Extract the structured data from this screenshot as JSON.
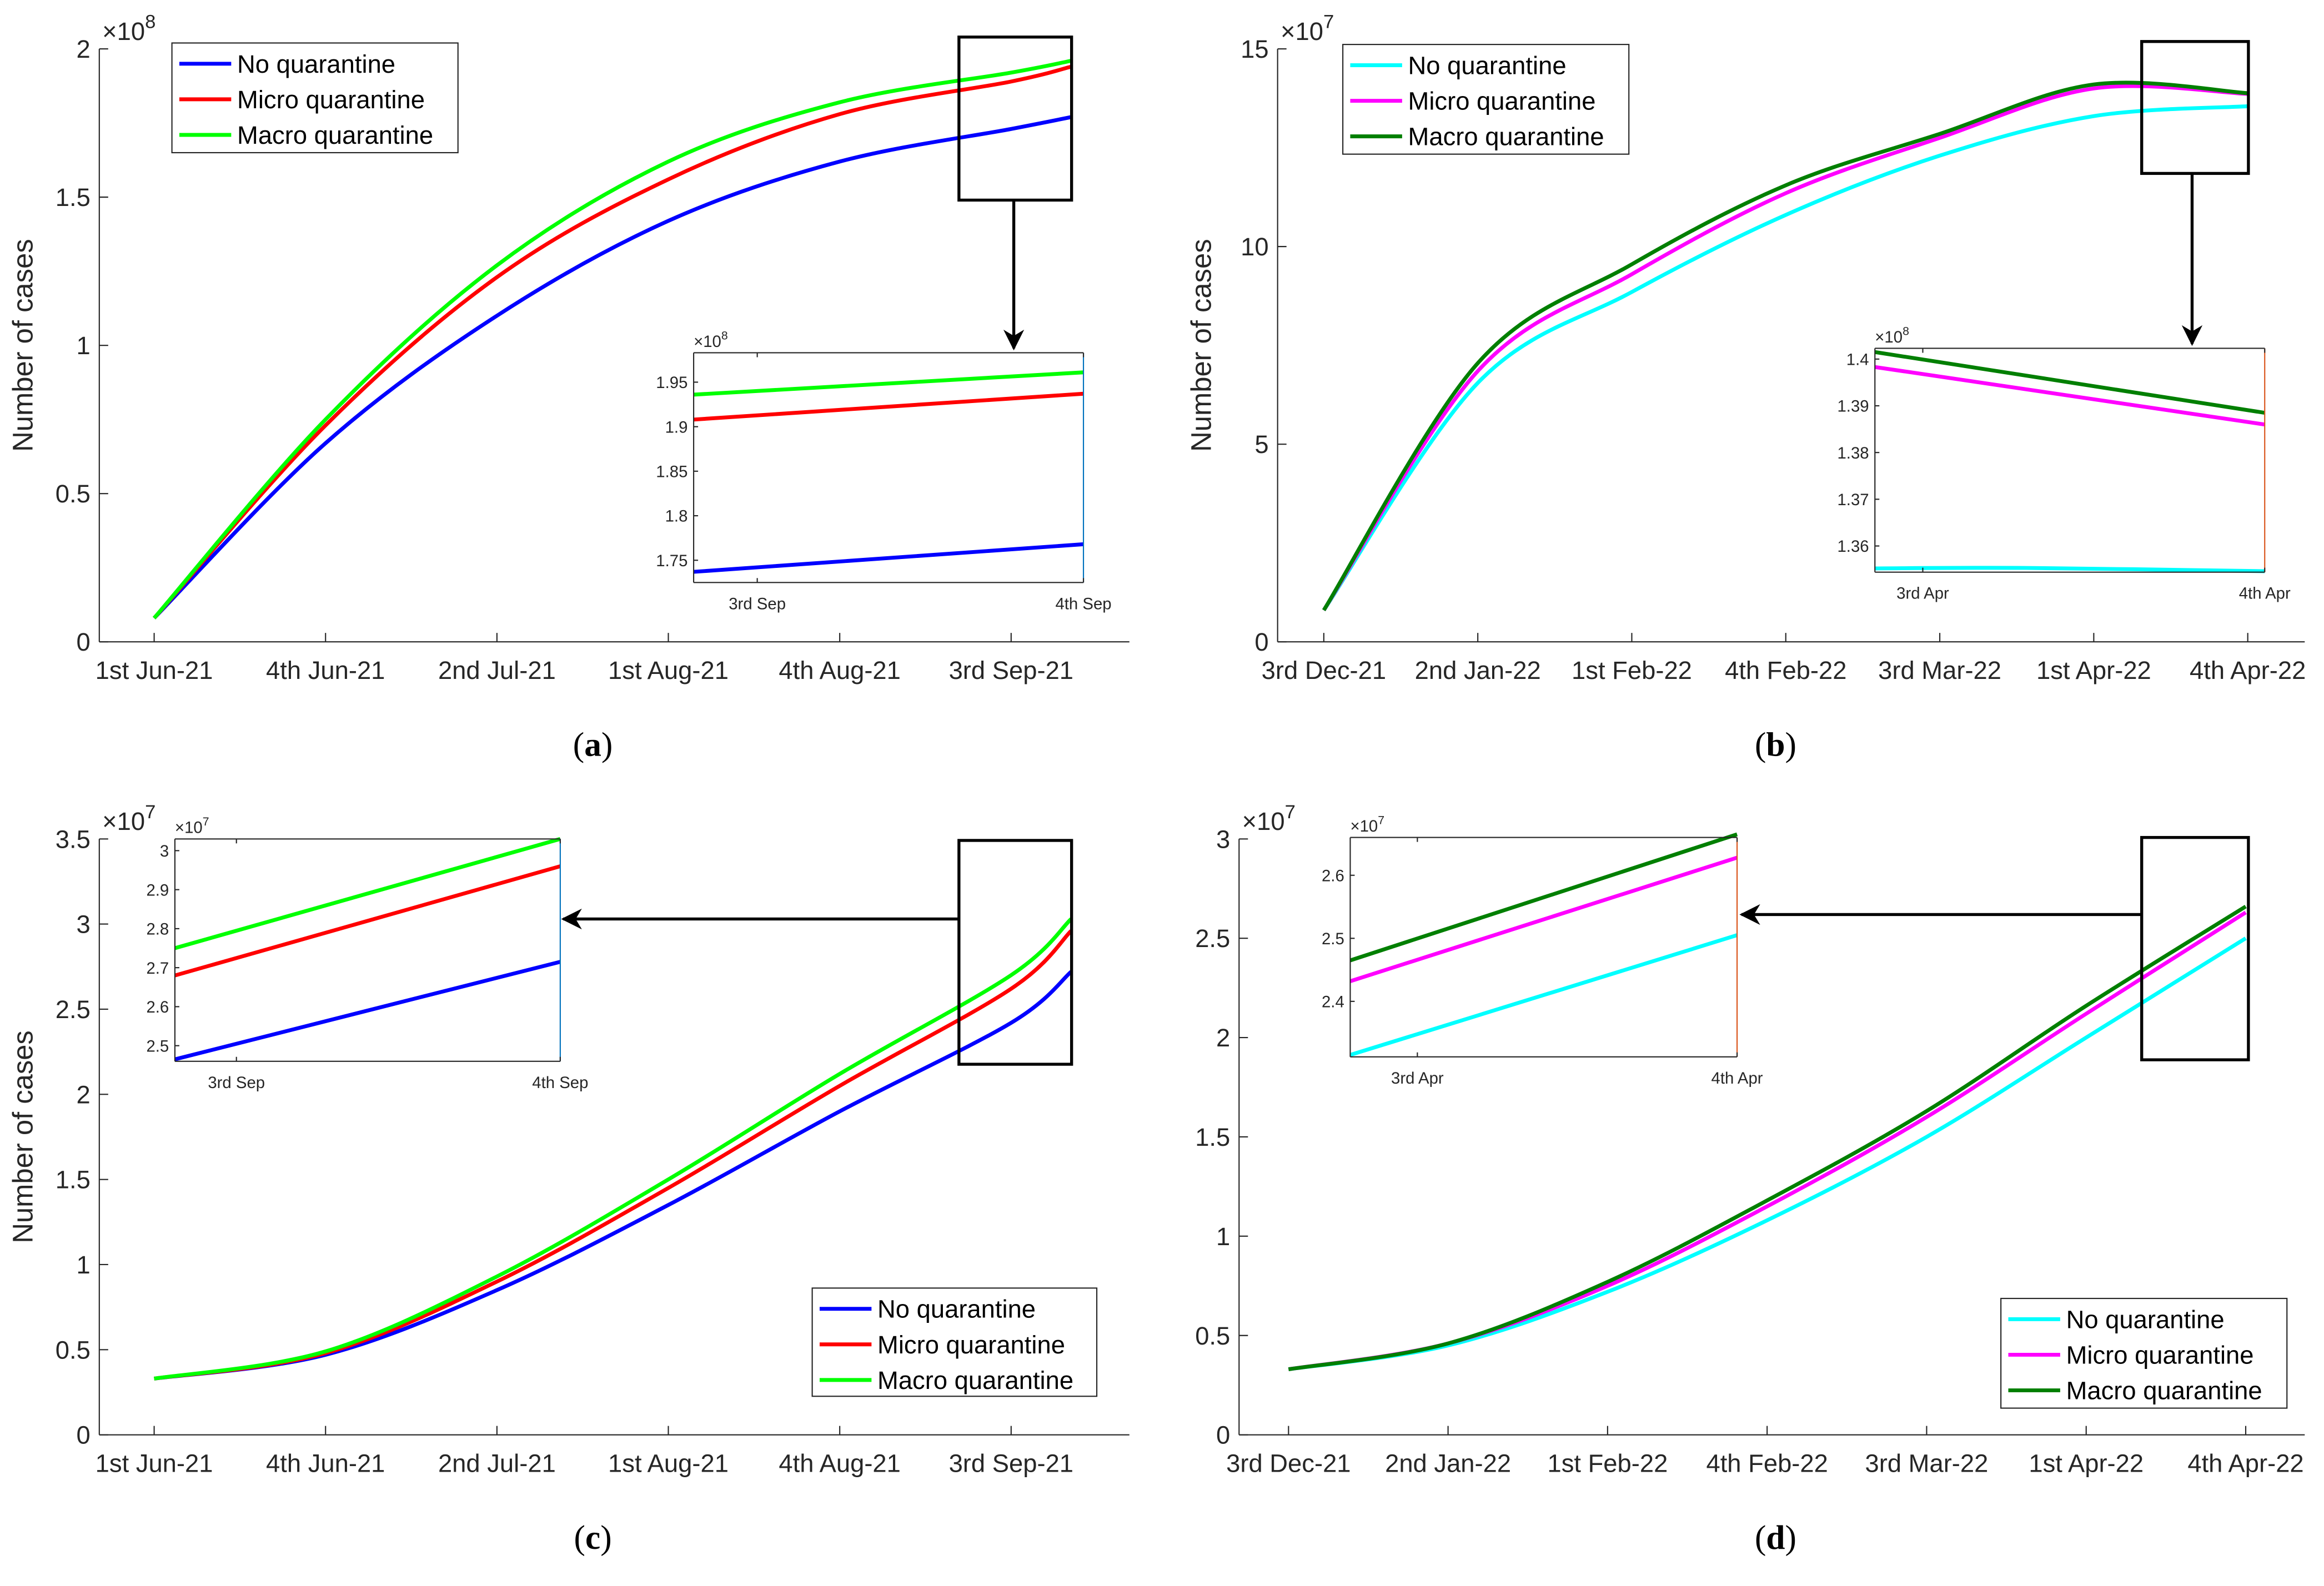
{
  "chart_data": [
    {
      "panel": "a",
      "type": "line",
      "caption": "a",
      "ylabel": "Number of cases",
      "y_exponent": "8",
      "ylim": [
        0,
        2
      ],
      "yticks": [
        0,
        0.5,
        1,
        1.5,
        2
      ],
      "ytick_labels": [
        "0",
        "0.5",
        "1",
        "1.5",
        "2"
      ],
      "xlim": [
        -0.32,
        5.69
      ],
      "xticks": [
        0,
        1,
        2,
        3,
        4,
        5
      ],
      "xtick_labels": [
        "1st Jun-21",
        "4th Jun-21",
        "2nd Jul-21",
        "1st Aug-21",
        "4th Aug-21",
        "3rd Sep-21"
      ],
      "legend_position": "top-left",
      "series": [
        {
          "name": "No quarantine",
          "color": "#0000ff",
          "x": [
            0,
            1,
            2,
            3,
            4,
            5,
            5.35
          ],
          "y": [
            0.08,
            0.67,
            1.1,
            1.42,
            1.62,
            1.73,
            1.77
          ]
        },
        {
          "name": "Micro quarantine",
          "color": "#ff0000",
          "x": [
            0,
            1,
            2,
            3,
            4,
            5,
            5.35
          ],
          "y": [
            0.08,
            0.73,
            1.23,
            1.56,
            1.78,
            1.89,
            1.94
          ]
        },
        {
          "name": "Macro quarantine",
          "color": "#00ff00",
          "x": [
            0,
            1,
            2,
            3,
            4,
            5,
            5.35
          ],
          "y": [
            0.08,
            0.75,
            1.27,
            1.62,
            1.82,
            1.92,
            1.96
          ]
        }
      ],
      "inset": {
        "y_exponent": "8",
        "ylim": [
          1.725,
          1.983
        ],
        "yticks": [
          1.75,
          1.8,
          1.85,
          1.9,
          1.95
        ],
        "ytick_labels": [
          "1.75",
          "1.8",
          "1.85",
          "1.9",
          "1.95"
        ],
        "xlim": [
          -0.195,
          1
        ],
        "xticks": [
          0,
          1
        ],
        "xtick_labels": [
          "3rd Sep",
          "4th Sep"
        ],
        "series": [
          {
            "name": "No quarantine",
            "x": [
              -0.195,
              1
            ],
            "y": [
              1.737,
              1.768
            ]
          },
          {
            "name": "Micro quarantine",
            "x": [
              -0.195,
              1
            ],
            "y": [
              1.908,
              1.937
            ]
          },
          {
            "name": "Macro quarantine",
            "x": [
              -0.195,
              1
            ],
            "y": [
              1.936,
              1.961
            ]
          }
        ]
      }
    },
    {
      "panel": "b",
      "type": "line",
      "caption": "b",
      "ylabel": "Number of cases",
      "y_exponent": "7",
      "ylim": [
        0,
        15
      ],
      "yticks": [
        0,
        5,
        10,
        15
      ],
      "ytick_labels": [
        "0",
        "5",
        "10",
        "15"
      ],
      "xlim": [
        -0.3,
        6.37
      ],
      "xticks": [
        0,
        1,
        2,
        3,
        4,
        5,
        6
      ],
      "xtick_labels": [
        "3rd Dec-21",
        "2nd Jan-22",
        "1st Feb-22",
        "4th Feb-22",
        "3rd Mar-22",
        "1st Apr-22",
        "4th Apr-22"
      ],
      "legend_position": "top-left",
      "series": [
        {
          "name": "No quarantine",
          "color": "#00ffff",
          "x": [
            0,
            1,
            2,
            3,
            4,
            5,
            6
          ],
          "y": [
            0.8,
            6.55,
            8.85,
            10.8,
            12.3,
            13.3,
            13.55
          ]
        },
        {
          "name": "Micro quarantine",
          "color": "#ff00ff",
          "x": [
            0,
            1,
            2,
            3,
            4,
            5,
            6
          ],
          "y": [
            0.8,
            6.85,
            9.3,
            11.35,
            12.75,
            14.0,
            13.86
          ]
        },
        {
          "name": "Macro quarantine",
          "color": "#007f00",
          "x": [
            0,
            1,
            2,
            3,
            4,
            5,
            6
          ],
          "y": [
            0.8,
            7.05,
            9.55,
            11.55,
            12.85,
            14.1,
            13.88
          ]
        }
      ],
      "inset": {
        "y_exponent": "8",
        "ylim": [
          1.3544,
          1.4023
        ],
        "yticks": [
          1.36,
          1.37,
          1.38,
          1.39,
          1.4
        ],
        "ytick_labels": [
          "1.36",
          "1.37",
          "1.38",
          "1.39",
          "1.4"
        ],
        "xlim": [
          -0.14,
          1
        ],
        "xticks": [
          0,
          1
        ],
        "xtick_labels": [
          "3rd Apr",
          "4th Apr"
        ],
        "series": [
          {
            "name": "No quarantine",
            "x": [
              -0.14,
              0.3,
              1
            ],
            "y": [
              1.3552,
              1.3553,
              1.3546
            ]
          },
          {
            "name": "Micro quarantine",
            "x": [
              -0.14,
              1
            ],
            "y": [
              1.3983,
              1.386
            ]
          },
          {
            "name": "Macro quarantine",
            "x": [
              -0.14,
              1
            ],
            "y": [
              1.4015,
              1.3885
            ]
          }
        ]
      }
    },
    {
      "panel": "c",
      "type": "line",
      "caption": "c",
      "ylabel": "Number of cases",
      "y_exponent": "7",
      "ylim": [
        0,
        3.5
      ],
      "yticks": [
        0,
        0.5,
        1,
        1.5,
        2,
        2.5,
        3,
        3.5
      ],
      "ytick_labels": [
        "0",
        "0.5",
        "1",
        "1.5",
        "2",
        "2.5",
        "3",
        "3.5"
      ],
      "xlim": [
        -0.32,
        5.69
      ],
      "xticks": [
        0,
        1,
        2,
        3,
        4,
        5
      ],
      "xtick_labels": [
        "1st Jun-21",
        "4th Jun-21",
        "2nd Jul-21",
        "1st Aug-21",
        "4th Aug-21",
        "3rd Sep-21"
      ],
      "legend_position": "bottom-right",
      "series": [
        {
          "name": "No quarantine",
          "color": "#0000ff",
          "x": [
            0,
            1,
            2,
            3,
            4,
            5,
            5.35
          ],
          "y": [
            0.33,
            0.47,
            0.85,
            1.35,
            1.9,
            2.42,
            2.72
          ]
        },
        {
          "name": "Micro quarantine",
          "color": "#ff0000",
          "x": [
            0,
            1,
            2,
            3,
            4,
            5,
            5.35
          ],
          "y": [
            0.33,
            0.48,
            0.9,
            1.45,
            2.05,
            2.62,
            2.96
          ]
        },
        {
          "name": "Macro quarantine",
          "color": "#00ff00",
          "x": [
            0,
            1,
            2,
            3,
            4,
            5,
            5.35
          ],
          "y": [
            0.33,
            0.49,
            0.93,
            1.5,
            2.12,
            2.7,
            3.03
          ]
        }
      ],
      "inset": {
        "y_exponent": "7",
        "ylim": [
          2.46,
          3.03
        ],
        "yticks": [
          2.5,
          2.6,
          2.7,
          2.8,
          2.9,
          3
        ],
        "ytick_labels": [
          "2.5",
          "2.6",
          "2.7",
          "2.8",
          "2.9",
          "3"
        ],
        "xlim": [
          -0.19,
          1
        ],
        "xticks": [
          0,
          1
        ],
        "xtick_labels": [
          "3rd Sep",
          "4th Sep"
        ],
        "series": [
          {
            "name": "No quarantine",
            "x": [
              -0.19,
              1
            ],
            "y": [
              2.465,
              2.715
            ]
          },
          {
            "name": "Micro quarantine",
            "x": [
              -0.19,
              1
            ],
            "y": [
              2.68,
              2.96
            ]
          },
          {
            "name": "Macro quarantine",
            "x": [
              -0.19,
              1
            ],
            "y": [
              2.75,
              3.03
            ]
          }
        ]
      }
    },
    {
      "panel": "d",
      "type": "line",
      "caption": "d",
      "ylabel": "",
      "y_exponent": "7",
      "ylim": [
        0,
        3
      ],
      "yticks": [
        0,
        0.5,
        1,
        1.5,
        2,
        2.5,
        3
      ],
      "ytick_labels": [
        "0",
        "0.5",
        "1",
        "1.5",
        "2",
        "2.5",
        "3"
      ],
      "xlim": [
        -0.31,
        6.37
      ],
      "xticks": [
        0,
        1,
        2,
        3,
        4,
        5,
        6
      ],
      "xtick_labels": [
        "3rd Dec-21",
        "2nd Jan-22",
        "1st Feb-22",
        "4th Feb-22",
        "3rd Mar-22",
        "1st Apr-22",
        "4th Apr-22"
      ],
      "legend_position": "bottom-right",
      "series": [
        {
          "name": "No quarantine",
          "color": "#00ffff",
          "x": [
            0,
            1,
            2,
            3,
            4,
            5,
            6
          ],
          "y": [
            0.33,
            0.45,
            0.72,
            1.08,
            1.5,
            2.0,
            2.5
          ]
        },
        {
          "name": "Micro quarantine",
          "color": "#ff00ff",
          "x": [
            0,
            1,
            2,
            3,
            4,
            5,
            6
          ],
          "y": [
            0.33,
            0.46,
            0.75,
            1.15,
            1.6,
            2.12,
            2.63
          ]
        },
        {
          "name": "Macro quarantine",
          "color": "#007f00",
          "x": [
            0,
            1,
            2,
            3,
            4,
            5,
            6
          ],
          "y": [
            0.33,
            0.46,
            0.77,
            1.18,
            1.63,
            2.16,
            2.66
          ]
        }
      ],
      "inset": {
        "y_exponent": "7",
        "ylim": [
          2.312,
          2.66
        ],
        "yticks": [
          2.4,
          2.5,
          2.6
        ],
        "ytick_labels": [
          "2.4",
          "2.5",
          "2.6"
        ],
        "xlim": [
          -0.21,
          1
        ],
        "xticks": [
          0,
          1
        ],
        "xtick_labels": [
          "3rd Apr",
          "4th Apr"
        ],
        "series": [
          {
            "name": "No quarantine",
            "x": [
              -0.21,
              1
            ],
            "y": [
              2.315,
              2.505
            ]
          },
          {
            "name": "Micro quarantine",
            "x": [
              -0.21,
              1
            ],
            "y": [
              2.432,
              2.628
            ]
          },
          {
            "name": "Macro quarantine",
            "x": [
              -0.21,
              1
            ],
            "y": [
              2.465,
              2.665
            ]
          }
        ]
      }
    }
  ]
}
